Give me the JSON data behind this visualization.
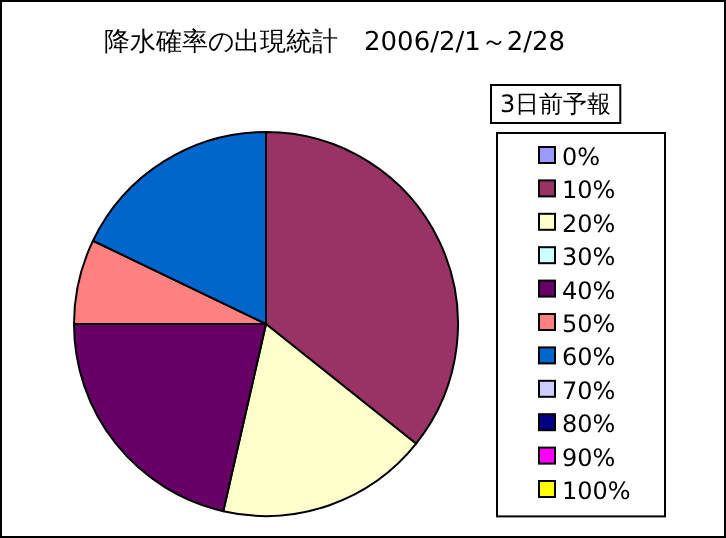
{
  "chart_data": {
    "type": "pie",
    "title": "降水確率の出現統計　2006/2/1～2/28",
    "legend_title": "3日前予報",
    "categories": [
      "0%",
      "10%",
      "20%",
      "30%",
      "40%",
      "50%",
      "60%",
      "70%",
      "80%",
      "90%",
      "100%"
    ],
    "values": [
      0,
      35.71,
      17.86,
      0,
      21.43,
      7.14,
      17.86,
      0,
      0,
      0,
      0
    ],
    "colors": [
      "#9999ff",
      "#993366",
      "#ffffcc",
      "#ccffff",
      "#660066",
      "#ff8080",
      "#0066cc",
      "#ccccff",
      "#000080",
      "#ff00ff",
      "#ffff00"
    ],
    "legend": "right"
  }
}
